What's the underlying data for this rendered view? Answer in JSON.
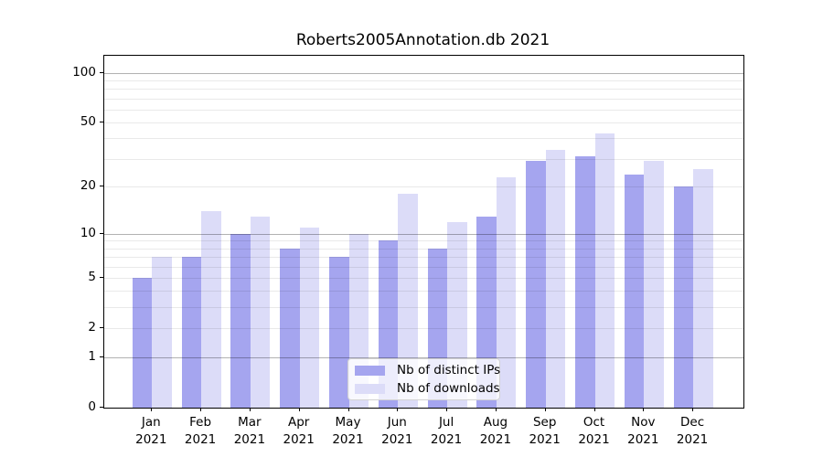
{
  "title": "Roberts2005Annotation.db 2021",
  "colors": {
    "bar_distinct_ips": "#a5a5ef",
    "bar_downloads": "#dcdcf8",
    "spine": "#000000",
    "grid_major": "#b3b3b3",
    "grid_minor": "#e8e8e8",
    "legend_border": "#d2d2d2"
  },
  "chart_data": {
    "type": "bar",
    "title": "Roberts2005Annotation.db 2021",
    "categories": [
      "Jan",
      "Feb",
      "Mar",
      "Apr",
      "May",
      "Jun",
      "Jul",
      "Aug",
      "Sep",
      "Oct",
      "Nov",
      "Dec"
    ],
    "category_year": "2021",
    "series": [
      {
        "name": "Nb of distinct IPs",
        "color": "#a5a5ef",
        "values": [
          5,
          7,
          10,
          8,
          7,
          9,
          8,
          13,
          29,
          31,
          24,
          20
        ]
      },
      {
        "name": "Nb of downloads",
        "color": "#dcdcf8",
        "values": [
          7,
          14,
          13,
          11,
          10,
          18,
          12,
          23,
          34,
          43,
          29,
          26
        ]
      }
    ],
    "xlabel": "",
    "ylabel": "",
    "yscale": "log1p",
    "ylim": [
      0,
      127
    ],
    "yticks_labeled": [
      0,
      1,
      2,
      5,
      10,
      20,
      50,
      100
    ],
    "grid_major_values": [
      1,
      10,
      100
    ],
    "grid_minor_values": [
      2,
      3,
      4,
      5,
      6,
      7,
      8,
      9,
      20,
      30,
      40,
      50,
      60,
      70,
      80,
      90
    ],
    "grid": "on",
    "legend_position": "lower center"
  },
  "legend": {
    "items": [
      {
        "label": "Nb of distinct IPs"
      },
      {
        "label": "Nb of downloads"
      }
    ]
  }
}
